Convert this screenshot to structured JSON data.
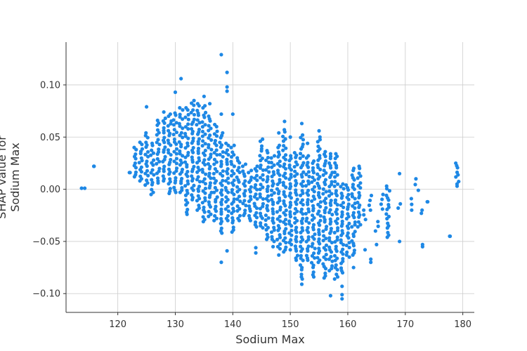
{
  "chart_data": {
    "type": "scatter",
    "title": "",
    "xlabel": "Sodium Max",
    "ylabel_lines": [
      "SHAP value for",
      "Sodium Max"
    ],
    "xlim": [
      111,
      182
    ],
    "ylim": [
      -0.118,
      0.141
    ],
    "xticks": [
      120,
      130,
      140,
      150,
      160,
      170,
      180
    ],
    "yticks": [
      -0.1,
      -0.05,
      0.0,
      0.05,
      0.1
    ],
    "ytick_labels": [
      "−0.10",
      "−0.05",
      "0.00",
      "0.05",
      "0.10"
    ],
    "grid": true,
    "point_color": "#1e88e5",
    "columns": [
      {
        "x": 114,
        "low": 0.001,
        "high": 0.001,
        "extras": []
      },
      {
        "x": 116,
        "low": 0.022,
        "high": 0.022,
        "extras": []
      },
      {
        "x": 122,
        "low": 0.016,
        "high": 0.016,
        "extras": []
      },
      {
        "x": 123,
        "low": 0.012,
        "high": 0.038,
        "extras": []
      },
      {
        "x": 124,
        "low": 0.008,
        "high": 0.043,
        "extras": []
      },
      {
        "x": 125,
        "low": 0.004,
        "high": 0.054,
        "extras": [
          0.079
        ]
      },
      {
        "x": 126,
        "low": -0.005,
        "high": 0.042,
        "extras": []
      },
      {
        "x": 127,
        "low": 0.006,
        "high": 0.066,
        "extras": []
      },
      {
        "x": 128,
        "low": 0.008,
        "high": 0.068,
        "extras": [
          0.074
        ]
      },
      {
        "x": 129,
        "low": -0.004,
        "high": 0.07,
        "extras": []
      },
      {
        "x": 130,
        "low": -0.003,
        "high": 0.071,
        "extras": [
          0.093
        ]
      },
      {
        "x": 131,
        "low": -0.003,
        "high": 0.076,
        "extras": [
          0.106
        ]
      },
      {
        "x": 132,
        "low": -0.024,
        "high": 0.076,
        "extras": []
      },
      {
        "x": 133,
        "low": -0.01,
        "high": 0.085,
        "extras": []
      },
      {
        "x": 134,
        "low": -0.02,
        "high": 0.08,
        "extras": []
      },
      {
        "x": 135,
        "low": -0.031,
        "high": 0.078,
        "extras": [
          0.089
        ]
      },
      {
        "x": 136,
        "low": -0.026,
        "high": 0.07,
        "extras": [
          0.082
        ]
      },
      {
        "x": 137,
        "low": -0.03,
        "high": 0.06,
        "extras": []
      },
      {
        "x": 138,
        "low": -0.042,
        "high": 0.054,
        "extras": [
          0.072,
          0.129,
          -0.07
        ]
      },
      {
        "x": 139,
        "low": -0.03,
        "high": 0.042,
        "extras": [
          0.094,
          0.098,
          0.112,
          -0.059
        ]
      },
      {
        "x": 140,
        "low": -0.041,
        "high": 0.04,
        "extras": [
          0.072
        ]
      },
      {
        "x": 141,
        "low": -0.03,
        "high": 0.03,
        "extras": []
      },
      {
        "x": 142,
        "low": -0.025,
        "high": 0.022,
        "extras": []
      },
      {
        "x": 143,
        "low": -0.03,
        "high": 0.016,
        "extras": []
      },
      {
        "x": 144,
        "low": -0.036,
        "high": 0.022,
        "extras": [
          -0.056,
          -0.061
        ]
      },
      {
        "x": 145,
        "low": -0.037,
        "high": 0.046,
        "extras": []
      },
      {
        "x": 146,
        "low": -0.048,
        "high": 0.035,
        "extras": []
      },
      {
        "x": 147,
        "low": -0.05,
        "high": 0.03,
        "extras": [
          -0.055
        ]
      },
      {
        "x": 148,
        "low": -0.057,
        "high": 0.04,
        "extras": [
          -0.063,
          0.054
        ]
      },
      {
        "x": 149,
        "low": -0.06,
        "high": 0.055,
        "extras": [
          0.065
        ]
      },
      {
        "x": 150,
        "low": -0.053,
        "high": 0.032,
        "extras": [
          0.05,
          -0.058
        ]
      },
      {
        "x": 151,
        "low": -0.068,
        "high": 0.035,
        "extras": []
      },
      {
        "x": 152,
        "low": -0.086,
        "high": 0.052,
        "extras": [
          0.063,
          -0.091
        ]
      },
      {
        "x": 153,
        "low": -0.068,
        "high": 0.03,
        "extras": [
          0.044
        ]
      },
      {
        "x": 154,
        "low": -0.084,
        "high": 0.025,
        "extras": []
      },
      {
        "x": 155,
        "low": -0.07,
        "high": 0.05,
        "extras": [
          0.056
        ]
      },
      {
        "x": 156,
        "low": -0.085,
        "high": 0.036,
        "extras": []
      },
      {
        "x": 157,
        "low": -0.078,
        "high": 0.034,
        "extras": [
          -0.102
        ]
      },
      {
        "x": 158,
        "low": -0.086,
        "high": 0.034,
        "extras": []
      },
      {
        "x": 159,
        "low": -0.08,
        "high": 0.005,
        "extras": [
          -0.093,
          -0.101,
          -0.105
        ]
      },
      {
        "x": 160,
        "low": -0.065,
        "high": 0.004,
        "extras": []
      },
      {
        "x": 161,
        "low": -0.063,
        "high": 0.018,
        "extras": [
          -0.075
        ]
      },
      {
        "x": 162,
        "low": -0.036,
        "high": 0.02,
        "extras": []
      },
      {
        "x": 163,
        "low": -0.029,
        "high": -0.02,
        "extras": [
          -0.058
        ]
      },
      {
        "x": 164,
        "low": -0.02,
        "high": -0.006,
        "extras": [
          -0.067,
          -0.07
        ]
      },
      {
        "x": 165,
        "low": -0.04,
        "high": -0.031,
        "extras": [
          -0.053
        ]
      },
      {
        "x": 166,
        "low": -0.019,
        "high": -0.005,
        "extras": []
      },
      {
        "x": 167,
        "low": -0.046,
        "high": 0.003,
        "extras": []
      },
      {
        "x": 169,
        "low": -0.018,
        "high": -0.014,
        "extras": [
          0.015,
          -0.05
        ]
      },
      {
        "x": 171,
        "low": -0.02,
        "high": -0.009,
        "extras": []
      },
      {
        "x": 172,
        "low": -0.001,
        "high": 0.01,
        "extras": []
      },
      {
        "x": 173,
        "low": -0.023,
        "high": -0.02,
        "extras": [
          -0.053,
          -0.055
        ]
      },
      {
        "x": 174,
        "low": -0.012,
        "high": -0.012,
        "extras": []
      },
      {
        "x": 178,
        "low": -0.045,
        "high": -0.045,
        "extras": []
      },
      {
        "x": 179,
        "low": 0.003,
        "high": 0.025,
        "extras": []
      }
    ]
  }
}
